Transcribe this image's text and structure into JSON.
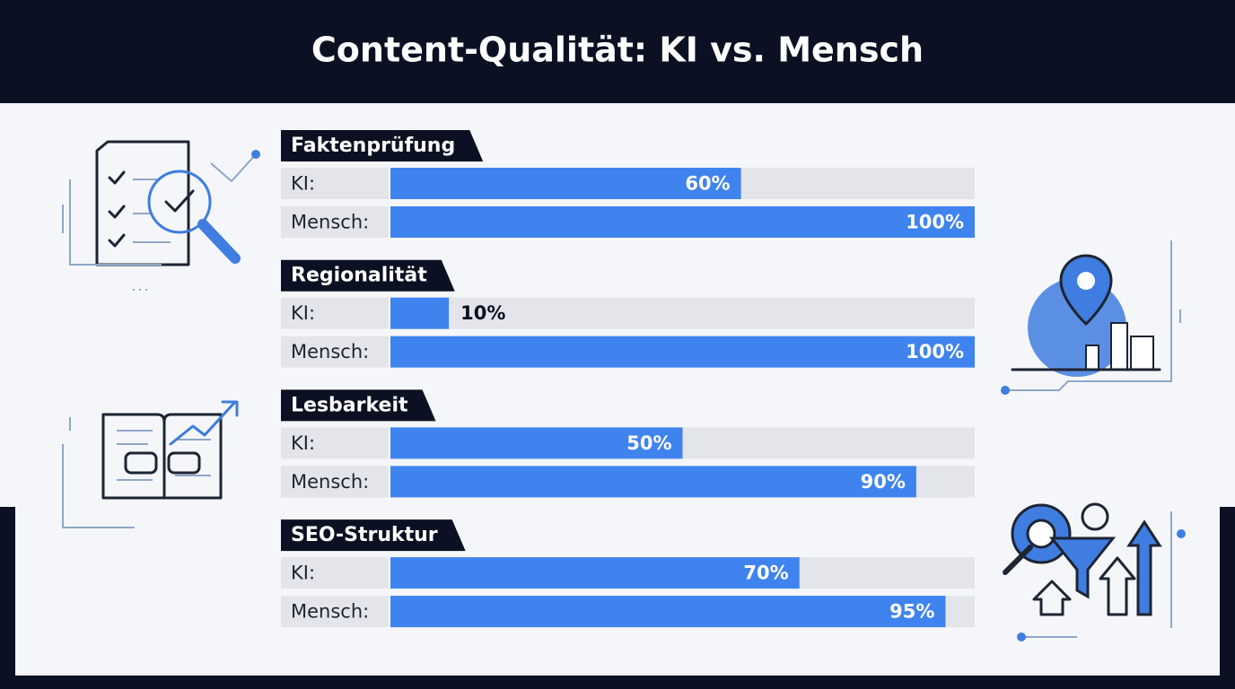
{
  "chart_data": {
    "type": "bar",
    "orientation": "horizontal",
    "title": "Content-Qualität: KI vs. Mensch",
    "categories": [
      "Faktenprüfung",
      "Regionalität",
      "Lesbarkeit",
      "SEO-Struktur"
    ],
    "series": [
      {
        "name": "KI:",
        "color": "#3f84ee",
        "values": [
          60,
          10,
          50,
          70
        ],
        "value_labels": [
          "60%",
          "10%",
          "50%",
          "70%"
        ]
      },
      {
        "name": "Mensch:",
        "color": "#3f84ee",
        "values": [
          100,
          100,
          90,
          95
        ],
        "value_labels": [
          "100%",
          "100%",
          "90%",
          "95%"
        ]
      }
    ],
    "xlim": [
      0,
      100
    ]
  }
}
